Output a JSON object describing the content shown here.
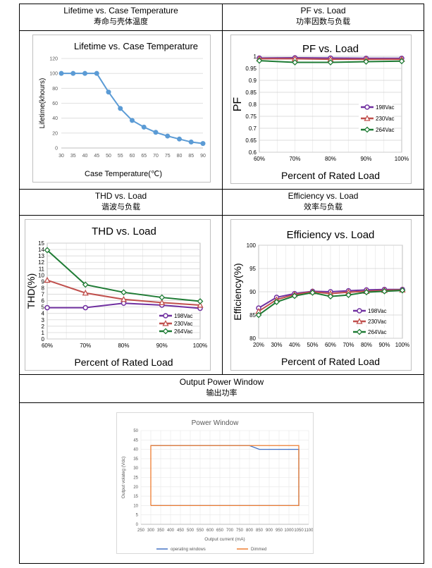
{
  "captions": {
    "lifetime": {
      "en": "Lifetime vs. Case Temperature",
      "zh": "寿命与壳体温度"
    },
    "pf": {
      "en": "PF vs. Load",
      "zh": "功率因数与负载"
    },
    "thd": {
      "en": "THD vs. Load",
      "zh": "谐波与负载"
    },
    "eff": {
      "en": "Efficiency vs. Load",
      "zh": "效率与负载"
    },
    "power": {
      "en": "Output Power Window",
      "zh": "输出功率"
    }
  },
  "colors": {
    "blue": "#5b9bd5",
    "purple": "#7030a0",
    "red": "#c0504d",
    "green": "#1e7b34",
    "pw_blue": "#4472c4",
    "pw_orange": "#ed7d31"
  },
  "chart_data": [
    {
      "id": "lifetime",
      "type": "line",
      "title": "Lifetime vs. Case Temperature",
      "xlabel": "Case Temperature(℃)",
      "ylabel": "Lifetime(khours)",
      "x": [
        30,
        35,
        40,
        45,
        50,
        55,
        60,
        65,
        70,
        75,
        80,
        85,
        90
      ],
      "xticks": [
        "30",
        "35",
        "40",
        "45",
        "50",
        "55",
        "60",
        "65",
        "70",
        "75",
        "80",
        "85",
        "90"
      ],
      "xlim": [
        30,
        90
      ],
      "ylim": [
        0,
        120
      ],
      "yticks": [
        "0",
        "20",
        "40",
        "60",
        "80",
        "100",
        "120"
      ],
      "series": [
        {
          "values": [
            100,
            100,
            100,
            100,
            75,
            53,
            37,
            28,
            21,
            16,
            12,
            8,
            6
          ]
        }
      ]
    },
    {
      "id": "pf",
      "type": "line",
      "title": "PF vs. Load",
      "xlabel": "Percent of Rated Load",
      "ylabel": "PF",
      "categories": [
        "60%",
        "70%",
        "80%",
        "90%",
        "100%"
      ],
      "ylim": [
        0.6,
        1
      ],
      "yticks": [
        "0.6",
        "0.65",
        "0.7",
        "0.75",
        "0.8",
        "0.85",
        "0.9",
        "0.95",
        "1"
      ],
      "legend_position": "right",
      "series": [
        {
          "name": "198Vac",
          "values": [
            0.993,
            0.994,
            0.993,
            0.992,
            0.992
          ]
        },
        {
          "name": "230Vac",
          "values": [
            0.99,
            0.99,
            0.988,
            0.988,
            0.988
          ]
        },
        {
          "name": "264Vac",
          "values": [
            0.982,
            0.975,
            0.975,
            0.978,
            0.98
          ]
        }
      ]
    },
    {
      "id": "thd",
      "type": "line",
      "title": "THD vs. Load",
      "xlabel": "Percent of Rated Load",
      "ylabel": "THD(%)",
      "categories": [
        "60%",
        "70%",
        "80%",
        "90%",
        "100%"
      ],
      "ylim": [
        0,
        15
      ],
      "yticks": [
        "0",
        "1",
        "2",
        "3",
        "4",
        "5",
        "6",
        "7",
        "8",
        "9",
        "10",
        "11",
        "12",
        "13",
        "14",
        "15"
      ],
      "legend_position": "bottom-right",
      "series": [
        {
          "name": "198Vac",
          "values": [
            4.9,
            4.9,
            5.6,
            5.3,
            4.8
          ]
        },
        {
          "name": "230Vac",
          "values": [
            9.2,
            7.2,
            6.2,
            5.7,
            5.3
          ]
        },
        {
          "name": "264Vac",
          "values": [
            13.9,
            8.5,
            7.3,
            6.5,
            5.9
          ]
        }
      ]
    },
    {
      "id": "eff",
      "type": "line",
      "title": "Efficiency vs. Load",
      "xlabel": "Percent of Rated Load",
      "ylabel": "Efficiency(%)",
      "categories": [
        "20%",
        "30%",
        "40%",
        "50%",
        "60%",
        "70%",
        "80%",
        "90%",
        "100%"
      ],
      "ylim": [
        80,
        100
      ],
      "yticks": [
        "80",
        "85",
        "90",
        "95",
        "100"
      ],
      "legend_position": "bottom-right",
      "series": [
        {
          "name": "198Vac",
          "values": [
            86.5,
            88.8,
            89.6,
            90.1,
            90.0,
            90.2,
            90.4,
            90.5,
            90.5
          ]
        },
        {
          "name": "230Vac",
          "values": [
            85.8,
            88.3,
            89.4,
            90.0,
            89.6,
            89.9,
            90.1,
            90.3,
            90.4
          ]
        },
        {
          "name": "264Vac",
          "values": [
            85.0,
            87.8,
            89.1,
            89.8,
            89.0,
            89.3,
            89.9,
            90.1,
            90.3
          ]
        }
      ]
    },
    {
      "id": "power",
      "type": "line",
      "title": "Power Window",
      "xlabel": "Output current (mA)",
      "ylabel": "Output  volateg (Vdc)",
      "xlim": [
        250,
        1100
      ],
      "ylim": [
        0,
        50
      ],
      "xticks": [
        "250",
        "300",
        "350",
        "400",
        "450",
        "500",
        "550",
        "600",
        "650",
        "700",
        "750",
        "800",
        "850",
        "900",
        "950",
        "1000",
        "1050",
        "1100"
      ],
      "yticks": [
        "0",
        "5",
        "10",
        "15",
        "20",
        "25",
        "30",
        "35",
        "40",
        "45",
        "50"
      ],
      "legend_position": "bottom",
      "series": [
        {
          "name": "operating windows",
          "x": [
            300,
            800,
            850,
            1050,
            1050,
            300
          ],
          "y": [
            42,
            42,
            40,
            40,
            10,
            10
          ]
        },
        {
          "name": "Dimmed",
          "x": [
            300,
            300,
            1050,
            1050,
            300
          ],
          "y": [
            10,
            42,
            42,
            10,
            10
          ]
        }
      ]
    }
  ]
}
